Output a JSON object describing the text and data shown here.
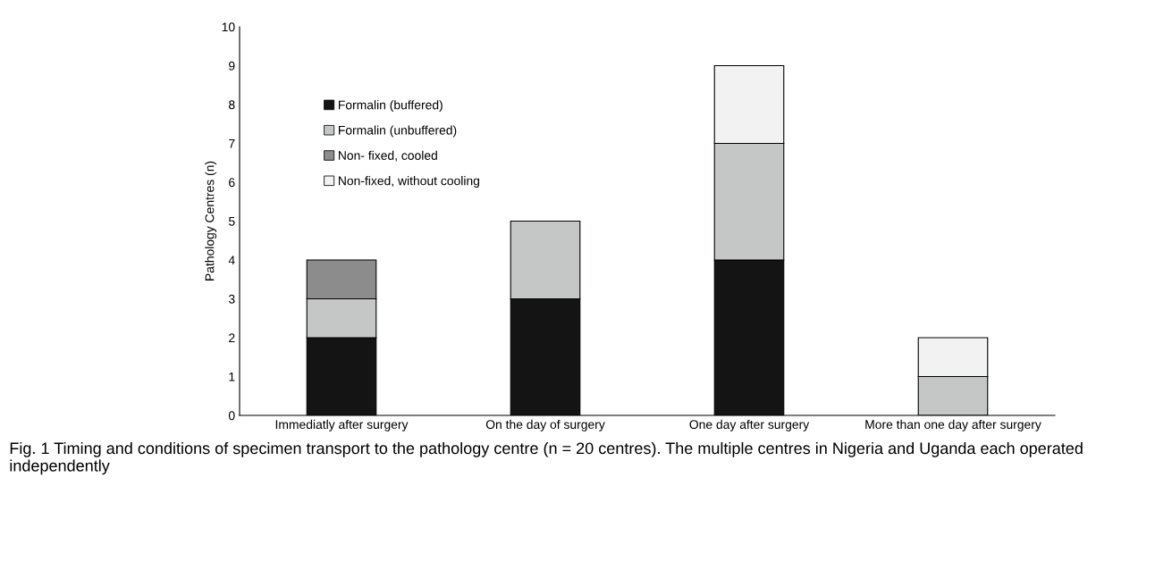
{
  "chart_data": {
    "type": "bar",
    "stacked": true,
    "ylabel": "Pathology Centres (n)",
    "categories": [
      "Immediatly after surgery",
      "On the day of surgery",
      "One day after surgery",
      "More than one day after surgery"
    ],
    "series": [
      {
        "name": "Formalin (buffered)",
        "color": "#141414",
        "values": [
          2,
          3,
          4,
          0
        ]
      },
      {
        "name": "Formalin (unbuffered)",
        "color": "#c5c7c6",
        "values": [
          1,
          2,
          3,
          1
        ]
      },
      {
        "name": "Non- fixed, cooled",
        "color": "#8c8c8c",
        "values": [
          1,
          0,
          0,
          0
        ]
      },
      {
        "name": "Non-fixed, without cooling",
        "color": "#f2f2f2",
        "values": [
          0,
          0,
          2,
          1
        ]
      }
    ],
    "ylim": [
      0,
      10
    ],
    "yticks": [
      0,
      1,
      2,
      3,
      4,
      5,
      6,
      7,
      8,
      9,
      10
    ],
    "grid": false,
    "legend": "top left",
    "annotations": [
      "Fig. 1 Timing and conditions of specimen transport to the pathology centre (n = 20 centres). The multiple centres in Nigeria and Uganda each operated independently"
    ]
  }
}
